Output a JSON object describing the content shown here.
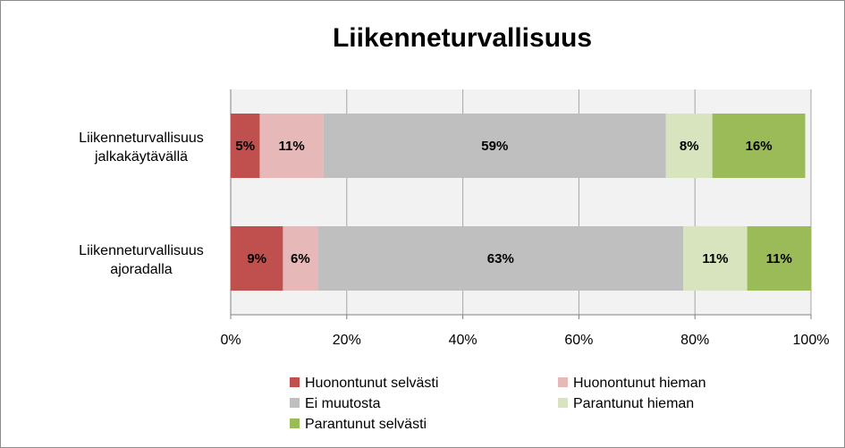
{
  "chart_data": {
    "type": "bar",
    "orientation": "horizontal",
    "stacked": "percent",
    "title": "Liikenneturvallisuus",
    "categories": [
      [
        "Liikenneturvallisuus",
        "jalkakäytävällä"
      ],
      [
        "Liikenneturvallisuus",
        "ajoradalla"
      ]
    ],
    "series": [
      {
        "name": "Huonontunut selvästi",
        "color": "#c0504d",
        "values": [
          5,
          9
        ],
        "labels": [
          "5%",
          "9%"
        ]
      },
      {
        "name": "Huonontunut hieman",
        "color": "#e6b9b8",
        "values": [
          11,
          6
        ],
        "labels": [
          "11%",
          "6%"
        ]
      },
      {
        "name": "Ei muutosta",
        "color": "#bfbfbf",
        "values": [
          59,
          63
        ],
        "labels": [
          "59%",
          "63%"
        ]
      },
      {
        "name": "Parantunut hieman",
        "color": "#d7e4bd",
        "values": [
          8,
          11
        ],
        "labels": [
          "8%",
          "11%"
        ]
      },
      {
        "name": "Parantunut selvästi",
        "color": "#9bbb59",
        "values": [
          16,
          11
        ],
        "labels": [
          "16%",
          "11%"
        ]
      }
    ],
    "xlim": [
      0,
      100
    ],
    "xticks": [
      "0%",
      "20%",
      "40%",
      "60%",
      "80%",
      "100%"
    ],
    "grid": true,
    "legend_position": "bottom",
    "plot_background": "#f2f2f2"
  }
}
